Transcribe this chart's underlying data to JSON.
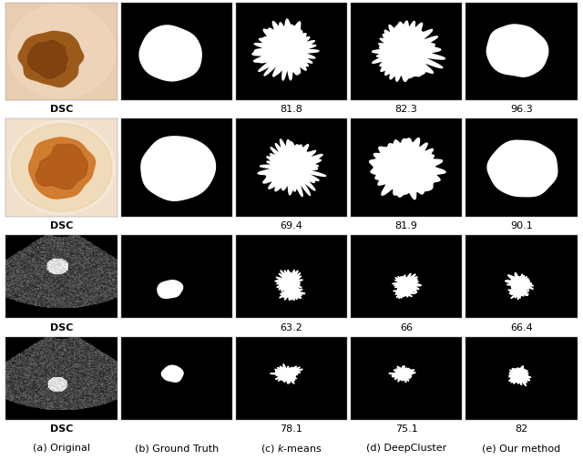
{
  "rows": 4,
  "cols": 5,
  "figsize": [
    6.4,
    5.05
  ],
  "dpi": 100,
  "bg_color": "#ffffff",
  "col_labels": [
    "(a) Original",
    "(b) Ground Truth",
    "(c) k-means",
    "(d) DeepCluster",
    "(e) Our method"
  ],
  "dsc_values": [
    [
      "",
      "",
      "81.8",
      "82.3",
      "96.3"
    ],
    [
      "",
      "",
      "69.4",
      "81.9",
      "90.1"
    ],
    [
      "",
      "",
      "63.2",
      "66",
      "66.4"
    ],
    [
      "",
      "",
      "78.1",
      "75.1",
      "82"
    ]
  ]
}
